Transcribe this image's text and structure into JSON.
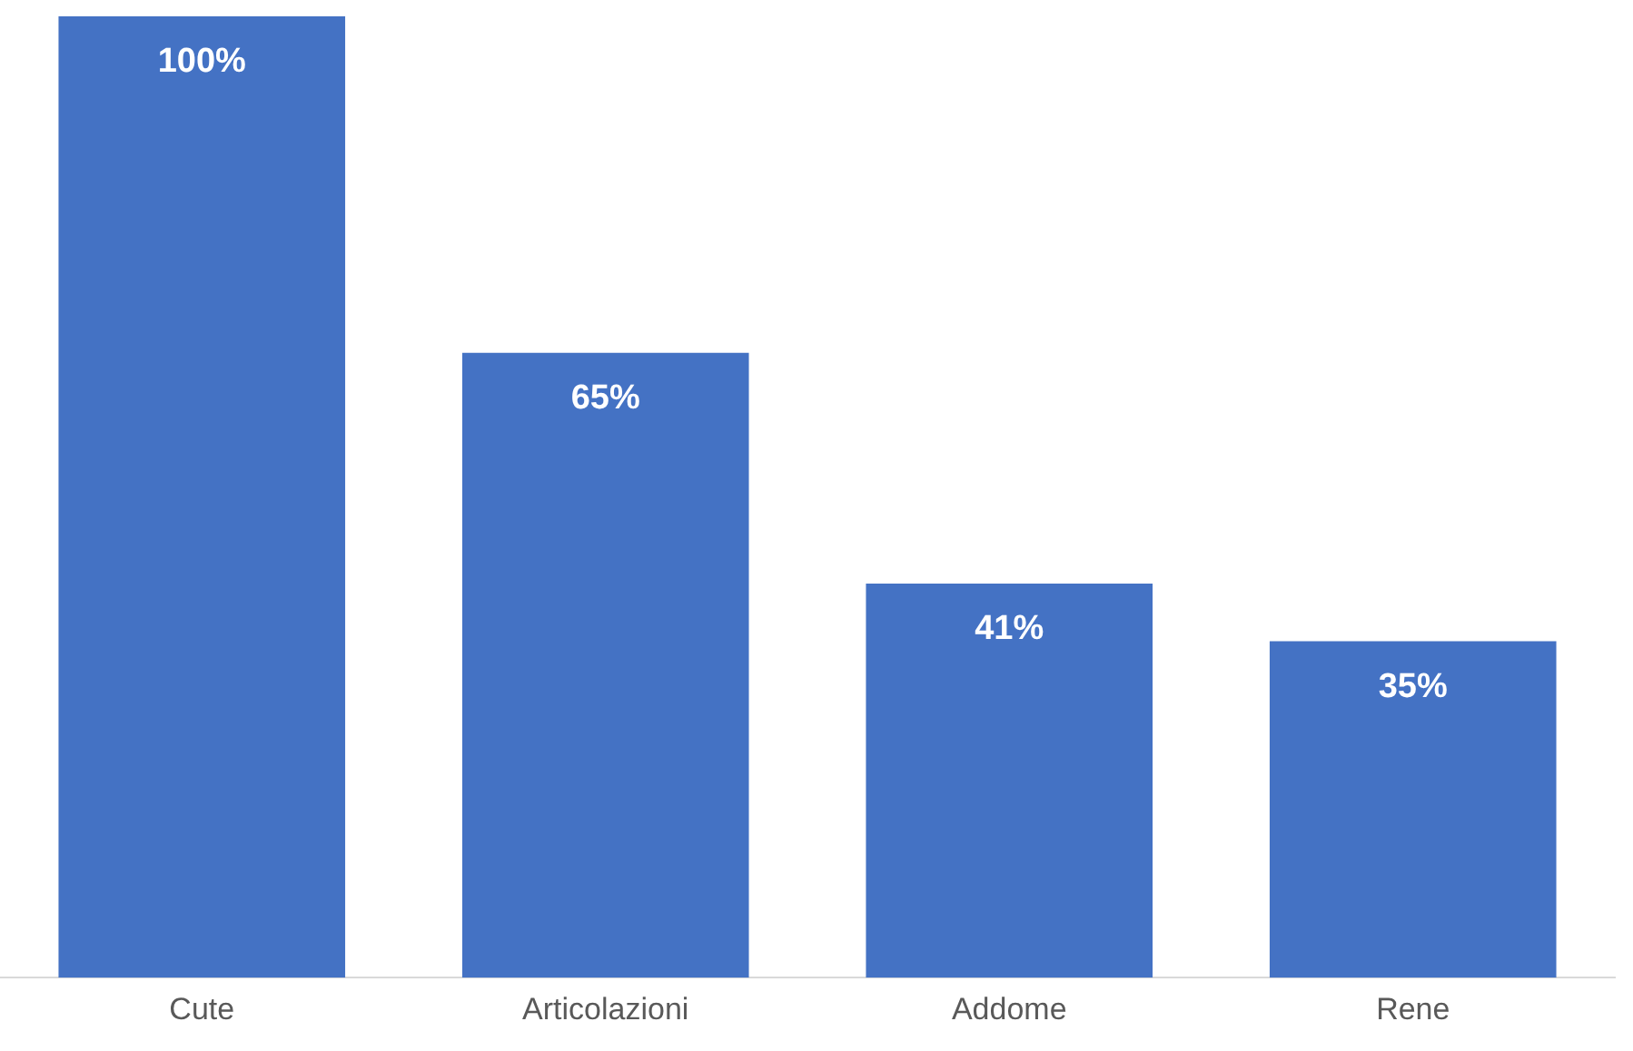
{
  "chart_data": {
    "type": "bar",
    "categories": [
      "Cute",
      "Articolazioni",
      "Addome",
      "Rene"
    ],
    "values": [
      100,
      65,
      41,
      35
    ],
    "value_labels": [
      "100%",
      "65%",
      "41%",
      "35%"
    ],
    "color": "#4472c4",
    "grid": false,
    "legend": false,
    "tick_labels": "x"
  }
}
